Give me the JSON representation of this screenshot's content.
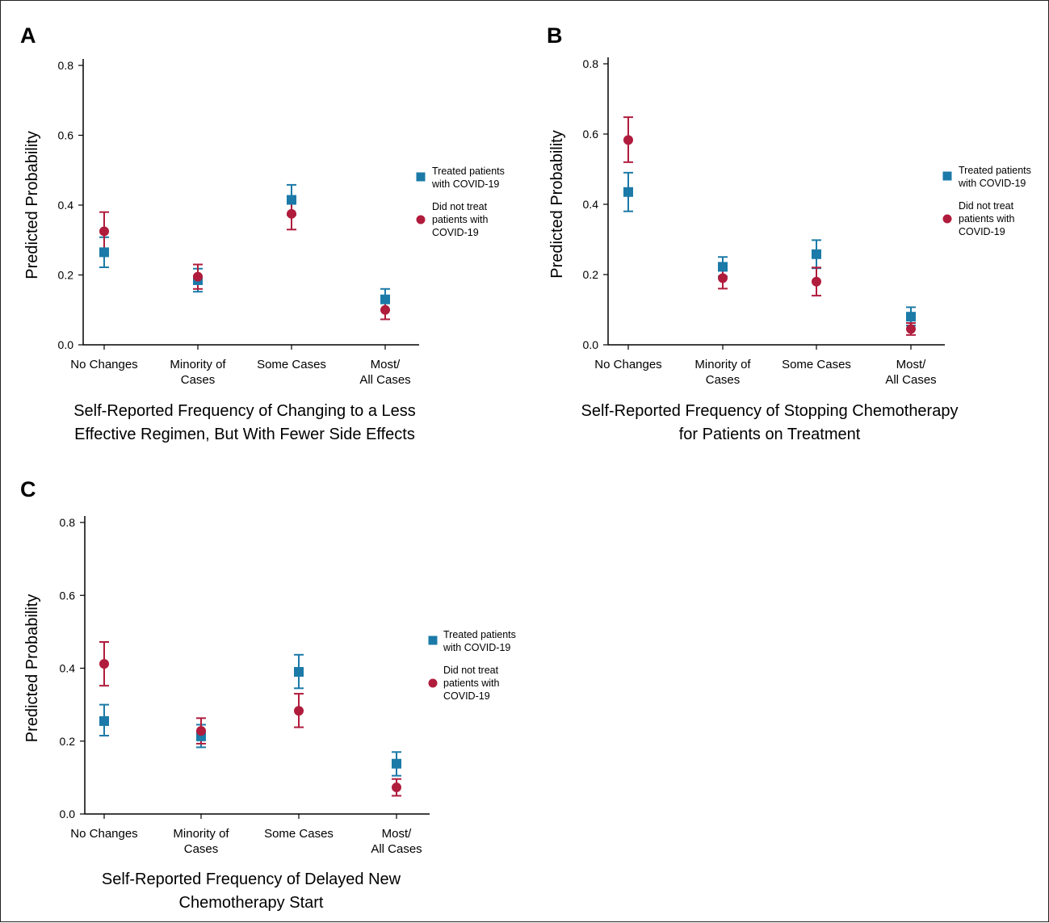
{
  "colors": {
    "treated": "#1b7aa8",
    "not_treated": "#b01c3c"
  },
  "chart_data": [
    {
      "type": "scatter",
      "panel": "A",
      "ylabel": "Predicted Probability",
      "xlabel": [
        "Self-Reported Frequency of Changing to a Less",
        "Effective Regimen, But With Fewer Side Effects"
      ],
      "ylim": [
        0,
        0.8
      ],
      "yticks": [
        "0.0",
        "0.2",
        "0.4",
        "0.6",
        "0.8"
      ],
      "categories": [
        [
          "No Changes"
        ],
        [
          "Minority of",
          "Cases"
        ],
        [
          "Some Cases"
        ],
        [
          "Most/",
          "All Cases"
        ]
      ],
      "legend_placement": "right",
      "series": [
        {
          "name": [
            "Treated patients",
            "with COVID-19"
          ],
          "marker": "square",
          "values": [
            0.265,
            0.185,
            0.415,
            0.13
          ],
          "lower": [
            0.222,
            0.152,
            0.372,
            0.1
          ],
          "upper": [
            0.308,
            0.218,
            0.458,
            0.16
          ]
        },
        {
          "name": [
            "Did not treat",
            "patients with",
            "COVID-19"
          ],
          "marker": "circle",
          "values": [
            0.325,
            0.195,
            0.375,
            0.1
          ],
          "lower": [
            0.27,
            0.16,
            0.33,
            0.073
          ],
          "upper": [
            0.38,
            0.23,
            0.42,
            0.127
          ]
        }
      ]
    },
    {
      "type": "scatter",
      "panel": "B",
      "ylabel": "Predicted Probability",
      "xlabel": [
        "Self-Reported Frequency of Stopping Chemotherapy",
        "for Patients on Treatment"
      ],
      "ylim": [
        0,
        0.8
      ],
      "yticks": [
        "0.0",
        "0.2",
        "0.4",
        "0.6",
        "0.8"
      ],
      "categories": [
        [
          "No Changes"
        ],
        [
          "Minority of",
          "Cases"
        ],
        [
          "Some Cases"
        ],
        [
          "Most/",
          "All Cases"
        ]
      ],
      "legend_placement": "right",
      "series": [
        {
          "name": [
            "Treated patients",
            "with COVID-19"
          ],
          "marker": "square",
          "values": [
            0.435,
            0.222,
            0.258,
            0.08
          ],
          "lower": [
            0.38,
            0.195,
            0.218,
            0.055
          ],
          "upper": [
            0.49,
            0.25,
            0.298,
            0.107
          ]
        },
        {
          "name": [
            "Did not treat",
            "patients with",
            "COVID-19"
          ],
          "marker": "circle",
          "values": [
            0.583,
            0.19,
            0.18,
            0.045
          ],
          "lower": [
            0.52,
            0.16,
            0.14,
            0.028
          ],
          "upper": [
            0.648,
            0.222,
            0.22,
            0.062
          ]
        }
      ]
    },
    {
      "type": "scatter",
      "panel": "C",
      "ylabel": "Predicted Probability",
      "xlabel": [
        "Self-Reported Frequency of Delayed New",
        "Chemotherapy Start"
      ],
      "ylim": [
        0,
        0.8
      ],
      "yticks": [
        "0.0",
        "0.2",
        "0.4",
        "0.6",
        "0.8"
      ],
      "categories": [
        [
          "No Changes"
        ],
        [
          "Minority of",
          "Cases"
        ],
        [
          "Some Cases"
        ],
        [
          "Most/",
          "All Cases"
        ]
      ],
      "legend_placement": "right",
      "series": [
        {
          "name": [
            "Treated patients",
            "with COVID-19"
          ],
          "marker": "square",
          "values": [
            0.255,
            0.213,
            0.39,
            0.138
          ],
          "lower": [
            0.215,
            0.183,
            0.345,
            0.105
          ],
          "upper": [
            0.3,
            0.245,
            0.437,
            0.17
          ]
        },
        {
          "name": [
            "Did not treat",
            "patients with",
            "COVID-19"
          ],
          "marker": "circle",
          "values": [
            0.412,
            0.228,
            0.283,
            0.073
          ],
          "lower": [
            0.352,
            0.193,
            0.238,
            0.05
          ],
          "upper": [
            0.472,
            0.263,
            0.33,
            0.096
          ]
        }
      ]
    }
  ]
}
